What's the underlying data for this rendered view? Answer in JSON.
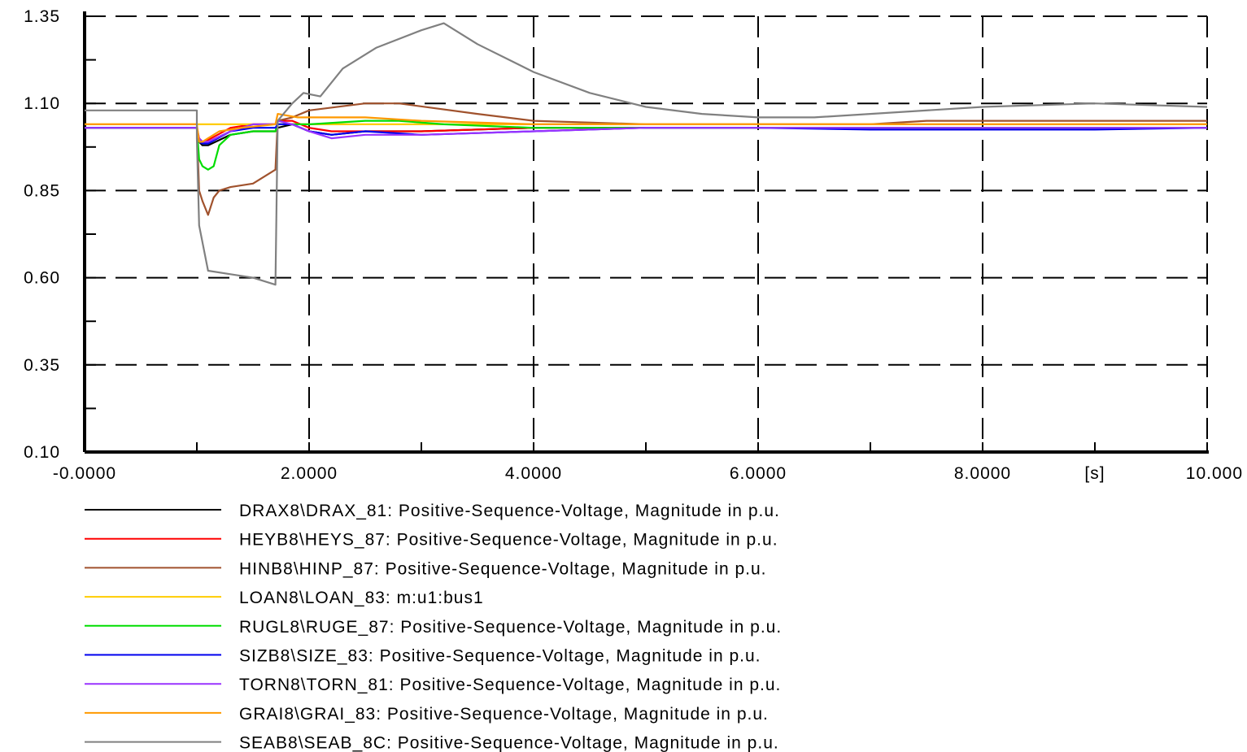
{
  "chart_data": {
    "type": "line",
    "x_unit": "[s]",
    "xlim": [
      0,
      10
    ],
    "ylim": [
      0.1,
      1.35
    ],
    "x_ticks": [
      {
        "value": 0,
        "label": "-0.0000"
      },
      {
        "value": 2,
        "label": "2.0000"
      },
      {
        "value": 4,
        "label": "4.0000"
      },
      {
        "value": 6,
        "label": "6.0000"
      },
      {
        "value": 8,
        "label": "8.0000"
      },
      {
        "value": 10,
        "label": "10.000"
      }
    ],
    "y_ticks": [
      {
        "value": 0.1,
        "label": "0.10"
      },
      {
        "value": 0.35,
        "label": "0.35"
      },
      {
        "value": 0.6,
        "label": "0.60"
      },
      {
        "value": 0.85,
        "label": "0.85"
      },
      {
        "value": 1.1,
        "label": "1.10"
      },
      {
        "value": 1.35,
        "label": "1.35"
      }
    ],
    "grid": true,
    "legend_position": "bottom",
    "series": [
      {
        "name": "DRAX8\\DRAX_81: Positive-Sequence-Voltage, Magnitude in p.u.",
        "color": "#000000",
        "x": [
          0,
          1.0,
          1.02,
          1.05,
          1.1,
          1.3,
          1.5,
          1.7,
          1.72,
          1.85,
          2.0,
          2.2,
          2.5,
          3.0,
          4.0,
          5.0,
          6.0,
          7.0,
          8.0,
          9.0,
          10.0
        ],
        "y": [
          1.03,
          1.03,
          0.99,
          0.98,
          0.98,
          1.01,
          1.02,
          1.02,
          1.03,
          1.04,
          1.02,
          1.01,
          1.02,
          1.02,
          1.03,
          1.03,
          1.03,
          1.03,
          1.03,
          1.03,
          1.03
        ]
      },
      {
        "name": "HEYB8\\HEYS_87: Positive-Sequence-Voltage, Magnitude in p.u.",
        "color": "#ff0000",
        "x": [
          0,
          1.0,
          1.02,
          1.05,
          1.1,
          1.3,
          1.5,
          1.7,
          1.72,
          1.85,
          2.0,
          2.2,
          2.5,
          3.0,
          4.0,
          5.0,
          6.0,
          7.0,
          8.0,
          9.0,
          10.0
        ],
        "y": [
          1.03,
          1.03,
          1.0,
          0.99,
          0.995,
          1.03,
          1.04,
          1.04,
          1.05,
          1.05,
          1.03,
          1.02,
          1.02,
          1.02,
          1.03,
          1.03,
          1.03,
          1.03,
          1.03,
          1.03,
          1.03
        ]
      },
      {
        "name": "HINB8\\HINP_87: Positive-Sequence-Voltage, Magnitude in p.u.",
        "color": "#a0522d",
        "x": [
          0,
          1.0,
          1.02,
          1.05,
          1.1,
          1.15,
          1.2,
          1.3,
          1.5,
          1.7,
          1.72,
          1.85,
          2.0,
          2.5,
          2.8,
          3.5,
          4.0,
          5.0,
          6.0,
          7.0,
          7.5,
          8.8,
          10.0
        ],
        "y": [
          1.03,
          1.03,
          0.85,
          0.82,
          0.78,
          0.83,
          0.85,
          0.86,
          0.87,
          0.91,
          1.05,
          1.06,
          1.08,
          1.1,
          1.1,
          1.07,
          1.05,
          1.04,
          1.04,
          1.04,
          1.05,
          1.05,
          1.05
        ]
      },
      {
        "name": "LOAN8\\LOAN_83: m:u1:bus1",
        "color": "#ffcc00",
        "x": [
          0,
          10.0
        ],
        "y": [
          1.04,
          1.04
        ]
      },
      {
        "name": "RUGL8\\RUGE_87: Positive-Sequence-Voltage, Magnitude in p.u.",
        "color": "#00dd00",
        "x": [
          0,
          1.0,
          1.02,
          1.05,
          1.1,
          1.15,
          1.2,
          1.3,
          1.5,
          1.7,
          1.72,
          1.85,
          2.0,
          2.5,
          2.8,
          3.2,
          4.0,
          5.0,
          6.0,
          7.0,
          8.0,
          9.0,
          10.0
        ],
        "y": [
          1.03,
          1.03,
          0.94,
          0.92,
          0.91,
          0.92,
          0.98,
          1.01,
          1.02,
          1.02,
          1.04,
          1.04,
          1.04,
          1.05,
          1.05,
          1.04,
          1.03,
          1.03,
          1.03,
          1.03,
          1.03,
          1.03,
          1.03
        ]
      },
      {
        "name": "SIZB8\\SIZE_83: Positive-Sequence-Voltage, Magnitude in p.u.",
        "color": "#0000ee",
        "x": [
          0,
          1.0,
          1.02,
          1.05,
          1.1,
          1.3,
          1.5,
          1.7,
          1.72,
          1.85,
          2.0,
          2.2,
          2.5,
          3.0,
          4.0,
          5.0,
          6.0,
          7.0,
          8.0,
          9.0,
          10.0
        ],
        "y": [
          1.03,
          1.03,
          0.99,
          0.985,
          0.985,
          1.02,
          1.03,
          1.03,
          1.04,
          1.04,
          1.02,
          1.01,
          1.02,
          1.01,
          1.02,
          1.03,
          1.03,
          1.025,
          1.025,
          1.025,
          1.03
        ]
      },
      {
        "name": "TORN8\\TORN_81: Positive-Sequence-Voltage, Magnitude in p.u.",
        "color": "#9933ff",
        "x": [
          0,
          1.0,
          1.02,
          1.05,
          1.1,
          1.3,
          1.5,
          1.7,
          1.72,
          1.85,
          2.0,
          2.2,
          2.5,
          3.0,
          4.0,
          5.0,
          6.0,
          7.0,
          8.0,
          9.0,
          10.0
        ],
        "y": [
          1.03,
          1.03,
          1.0,
          0.99,
          0.99,
          1.02,
          1.04,
          1.04,
          1.05,
          1.04,
          1.02,
          1.0,
          1.01,
          1.01,
          1.02,
          1.03,
          1.03,
          1.03,
          1.03,
          1.03,
          1.03
        ]
      },
      {
        "name": "GRAI8\\GRAI_83: Positive-Sequence-Voltage, Magnitude in p.u.",
        "color": "#ff9900",
        "x": [
          0,
          1.0,
          1.02,
          1.05,
          1.2,
          1.4,
          1.7,
          1.72,
          1.9,
          2.2,
          2.5,
          3.0,
          4.0,
          5.0,
          6.0,
          7.0,
          8.0,
          9.0,
          10.0
        ],
        "y": [
          1.04,
          1.04,
          0.99,
          0.99,
          1.02,
          1.03,
          1.04,
          1.07,
          1.06,
          1.06,
          1.06,
          1.05,
          1.04,
          1.04,
          1.04,
          1.04,
          1.04,
          1.04,
          1.04
        ]
      },
      {
        "name": "SEAB8\\SEAB_8C: Positive-Sequence-Voltage, Magnitude in p.u.",
        "color": "#808080",
        "x": [
          0,
          1.0,
          1.0,
          1.02,
          1.1,
          1.3,
          1.5,
          1.7,
          1.72,
          1.85,
          1.95,
          2.1,
          2.3,
          2.6,
          3.0,
          3.2,
          3.5,
          4.0,
          4.5,
          5.0,
          5.5,
          6.0,
          6.5,
          7.0,
          8.0,
          9.0,
          10.0
        ],
        "y": [
          1.08,
          1.08,
          1.0,
          0.75,
          0.62,
          0.61,
          0.6,
          0.58,
          1.05,
          1.1,
          1.13,
          1.12,
          1.2,
          1.26,
          1.31,
          1.33,
          1.27,
          1.19,
          1.13,
          1.09,
          1.07,
          1.06,
          1.06,
          1.07,
          1.09,
          1.1,
          1.09
        ]
      }
    ]
  }
}
